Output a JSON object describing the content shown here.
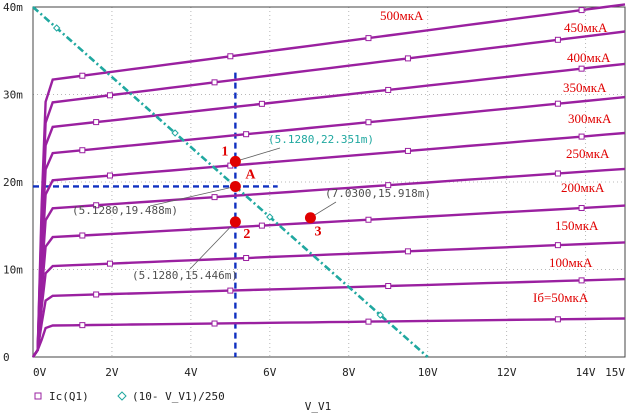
{
  "chart_data": {
    "type": "line",
    "x_ticks": [
      "0V",
      "2V",
      "4V",
      "6V",
      "8V",
      "10V",
      "12V",
      "14V",
      "15V"
    ],
    "y_ticks": [
      "0",
      "10m",
      "20m",
      "30m",
      "40m"
    ],
    "xlim": [
      0,
      15
    ],
    "ylim": [
      0,
      40
    ],
    "xlabel": "V_V1",
    "grid": true,
    "legend": [
      {
        "label": "Ic(Q1)",
        "marker": "square",
        "color": "#9a20a0"
      },
      {
        "label": "(10- V_V1)/250",
        "marker": "diamond",
        "color": "#20a8a0"
      }
    ],
    "curve_labels": [
      "Iб=50мкА",
      "100мкА",
      "150мкА",
      "200мкА",
      "250мкА",
      "300мкА",
      "350мкА",
      "400мкА",
      "450мкА",
      "500мкА"
    ],
    "series": [
      {
        "name": "Iб=50мкА",
        "knee": 3.6,
        "end": 4.4
      },
      {
        "name": "100мкА",
        "knee": 7.0,
        "end": 8.9
      },
      {
        "name": "150мкА",
        "knee": 10.4,
        "end": 13.1
      },
      {
        "name": "200мкА",
        "knee": 13.7,
        "end": 17.3
      },
      {
        "name": "250мкА",
        "knee": 17.0,
        "end": 21.5
      },
      {
        "name": "300мкА",
        "knee": 20.2,
        "end": 25.6
      },
      {
        "name": "350мкА",
        "knee": 23.3,
        "end": 29.7
      },
      {
        "name": "400мкА",
        "knee": 26.3,
        "end": 33.5
      },
      {
        "name": "450мкА",
        "knee": 29.1,
        "end": 37.2
      },
      {
        "name": "500мкА",
        "knee": 31.7,
        "end": 40.3
      }
    ],
    "load_line": {
      "x": [
        0,
        10
      ],
      "y": [
        40,
        0
      ]
    },
    "points": [
      {
        "label": "1",
        "x": 5.128,
        "y": 22.351
      },
      {
        "label": "A",
        "x": 5.128,
        "y": 19.488
      },
      {
        "label": "2",
        "x": 5.128,
        "y": 15.446
      },
      {
        "label": "3",
        "x": 7.03,
        "y": 15.918
      }
    ],
    "annotations": [
      "(5.1280,22.351m)",
      "(5.1280,19.488m)",
      "(7.0300,15.918m)",
      "(5.1280,15.446m)"
    ],
    "q_point_guides": {
      "x": 5.128,
      "y": 19.488
    }
  },
  "colors": {
    "curve": "#9a20a0",
    "load_line": "#20a8a0",
    "points": "#e00000",
    "guides": "#1030c0",
    "grid": "#b8b8b8",
    "coord_label": "#505050",
    "coord_label_cyan": "#20a8a0"
  }
}
